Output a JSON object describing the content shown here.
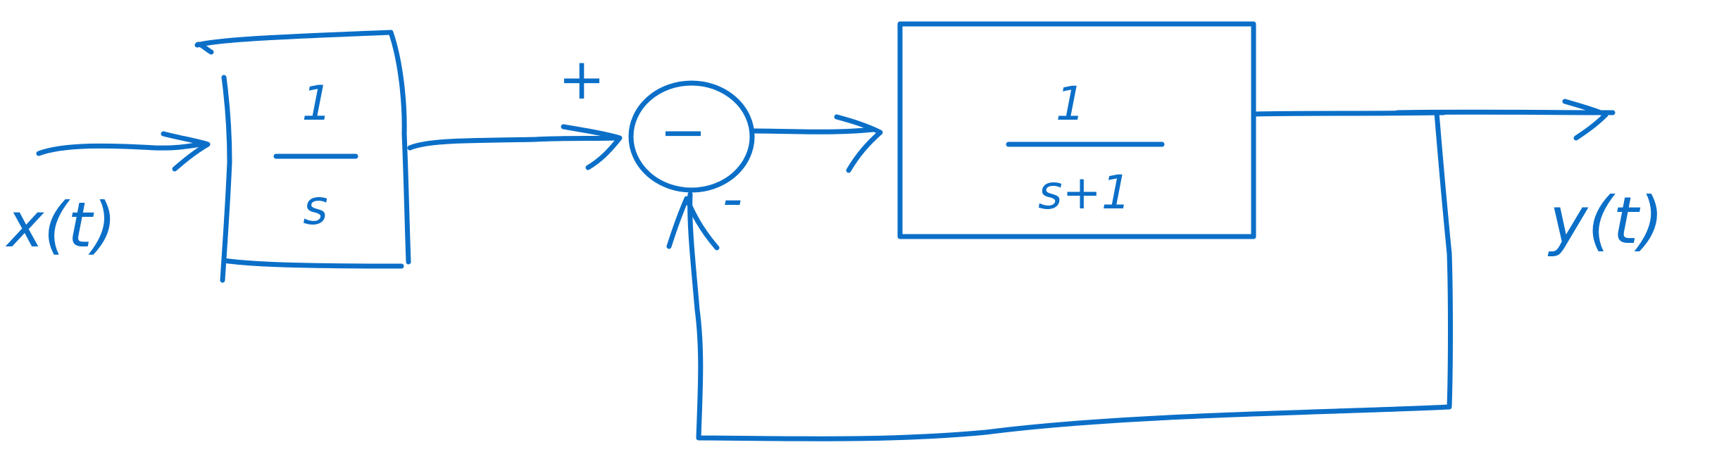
{
  "colors": {
    "ink": "#0b6fc8",
    "background": "#ffffff"
  },
  "input": {
    "label": "x(t)"
  },
  "integrator": {
    "numerator": "1",
    "denominator": "s"
  },
  "summing_junction": {
    "plus_sign": "+",
    "minus_sign": "-",
    "center_mark": "−"
  },
  "plant": {
    "numerator": "1",
    "denominator": "s+1"
  },
  "output": {
    "label": "y(t)"
  },
  "feedback": {
    "sign": "-"
  }
}
